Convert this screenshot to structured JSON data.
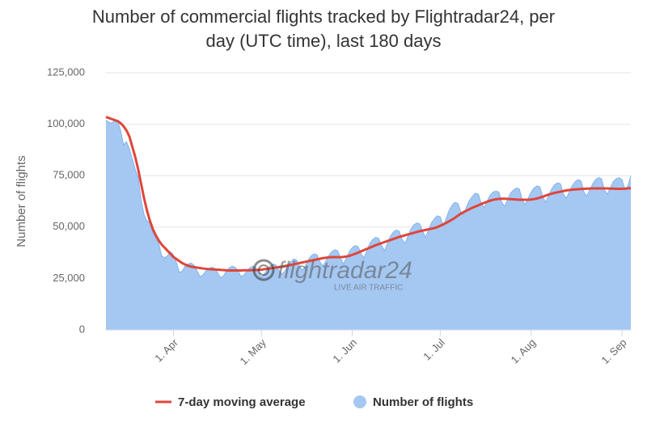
{
  "chart_data": {
    "type": "area",
    "title": [
      "Number of commercial flights tracked by Flightradar24, per",
      "day (UTC time), last 180 days"
    ],
    "y_axis_label": "Number of flights",
    "watermark": {
      "logo": "flightradar24",
      "tagline": "LIVE AIR TRAFFIC"
    },
    "ylim": [
      0,
      125000
    ],
    "yticks": [
      {
        "value": 0,
        "label": "0"
      },
      {
        "value": 25000,
        "label": "25,000"
      },
      {
        "value": 50000,
        "label": "50,000"
      },
      {
        "value": 75000,
        "label": "75,000"
      },
      {
        "value": 100000,
        "label": "100,000"
      },
      {
        "value": 125000,
        "label": "125,000"
      }
    ],
    "grid": true,
    "legend": "bottom",
    "categories": [
      null,
      null,
      null,
      null,
      null,
      null,
      null,
      null,
      null,
      null,
      null,
      null,
      null,
      null,
      null,
      null,
      null,
      null,
      null,
      null,
      null,
      null,
      null,
      "1. Apr",
      null,
      null,
      null,
      null,
      null,
      null,
      null,
      null,
      null,
      null,
      null,
      null,
      null,
      null,
      null,
      null,
      null,
      null,
      null,
      null,
      null,
      null,
      null,
      null,
      null,
      null,
      null,
      null,
      null,
      "1. May",
      null,
      null,
      null,
      null,
      null,
      null,
      null,
      null,
      null,
      null,
      null,
      null,
      null,
      null,
      null,
      null,
      null,
      null,
      null,
      null,
      null,
      null,
      null,
      null,
      null,
      null,
      null,
      null,
      null,
      null,
      "1. Jun",
      null,
      null,
      null,
      null,
      null,
      null,
      null,
      null,
      null,
      null,
      null,
      null,
      null,
      null,
      null,
      null,
      null,
      null,
      null,
      null,
      null,
      null,
      null,
      null,
      null,
      null,
      null,
      null,
      null,
      "1. Jul",
      null,
      null,
      null,
      null,
      null,
      null,
      null,
      null,
      null,
      null,
      null,
      null,
      null,
      null,
      null,
      null,
      null,
      null,
      null,
      null,
      null,
      null,
      null,
      null,
      null,
      null,
      null,
      null,
      null,
      null,
      "1. Aug",
      null,
      null,
      null,
      null,
      null,
      null,
      null,
      null,
      null,
      null,
      null,
      null,
      null,
      null,
      null,
      null,
      null,
      null,
      null,
      null,
      null,
      null,
      null,
      null,
      null,
      null,
      null,
      null,
      null,
      null,
      "1. Sep",
      null,
      null,
      null
    ],
    "series": [
      {
        "name": "7-day moving average",
        "type": "line",
        "color": "#e0453a",
        "values": [
          103500,
          103000,
          102500,
          102000,
          101500,
          100500,
          99000,
          97000,
          94000,
          89000,
          84000,
          78000,
          71000,
          64000,
          58000,
          53000,
          49000,
          46000,
          43500,
          41500,
          40000,
          38500,
          37000,
          35500,
          34500,
          33500,
          32500,
          31800,
          31200,
          30800,
          30500,
          30300,
          30100,
          29900,
          29700,
          29600,
          29500,
          29400,
          29300,
          29200,
          29100,
          29000,
          28900,
          28900,
          28900,
          28900,
          28900,
          29000,
          29000,
          29000,
          29100,
          29100,
          29200,
          29300,
          29500,
          29700,
          29900,
          30100,
          30300,
          30500,
          30700,
          31000,
          31300,
          31600,
          31900,
          32200,
          32500,
          32800,
          33100,
          33400,
          33700,
          34000,
          34300,
          34600,
          34900,
          35100,
          35300,
          35400,
          35400,
          35400,
          35400,
          35500,
          35700,
          36000,
          36500,
          37000,
          37600,
          38200,
          38800,
          39400,
          40000,
          40600,
          41200,
          41700,
          42200,
          42700,
          43200,
          43700,
          44200,
          44700,
          45200,
          45600,
          46000,
          46400,
          46800,
          47200,
          47600,
          48000,
          48300,
          48600,
          48900,
          49200,
          49500,
          50000,
          50600,
          51300,
          52000,
          52800,
          53600,
          54500,
          55500,
          56500,
          57300,
          58000,
          58700,
          59400,
          60000,
          60600,
          61200,
          61800,
          62300,
          62800,
          63200,
          63500,
          63700,
          63800,
          63800,
          63700,
          63600,
          63500,
          63400,
          63300,
          63300,
          63300,
          63300,
          63400,
          63600,
          63900,
          64300,
          64800,
          65300,
          65800,
          66200,
          66600,
          66900,
          67200,
          67500,
          67800,
          68000,
          68200,
          68300,
          68400,
          68500,
          68600,
          68700,
          68700,
          68800,
          68800,
          68800,
          68800,
          68800,
          68800,
          68700,
          68700,
          68600,
          68600,
          68600,
          68700,
          68800,
          69000
        ]
      },
      {
        "name": "Number of flights",
        "type": "area",
        "color": "#a5c8f2",
        "values": [
          102000,
          101000,
          100500,
          102000,
          101500,
          97000,
          90000,
          91500,
          88000,
          83000,
          78000,
          74000,
          63000,
          56000,
          53000,
          52000,
          47000,
          45000,
          42000,
          36000,
          35000,
          36000,
          38000,
          36500,
          33000,
          28000,
          28500,
          31000,
          32000,
          32500,
          31500,
          29000,
          26000,
          26500,
          28500,
          29500,
          30500,
          30000,
          28000,
          25500,
          26000,
          28500,
          30000,
          31000,
          30500,
          29000,
          26000,
          26500,
          28500,
          30000,
          31000,
          30500,
          28000,
          25500,
          27000,
          29500,
          31000,
          32000,
          31500,
          29000,
          27000,
          28500,
          31500,
          33000,
          34500,
          34000,
          31000,
          29000,
          31000,
          34000,
          36000,
          37000,
          36500,
          33000,
          31000,
          33500,
          36000,
          38000,
          39000,
          38500,
          35000,
          32000,
          35000,
          38000,
          40000,
          41000,
          40500,
          37000,
          35000,
          38500,
          42000,
          44000,
          45000,
          44500,
          41000,
          38500,
          42000,
          45500,
          47500,
          48500,
          48000,
          44000,
          42000,
          45500,
          49000,
          51000,
          52000,
          51500,
          48000,
          45000,
          48500,
          52000,
          54000,
          55500,
          55000,
          50500,
          54000,
          58000,
          60500,
          62000,
          61500,
          57500,
          56000,
          60000,
          63000,
          65000,
          66500,
          66000,
          61500,
          59500,
          62500,
          65500,
          67000,
          67500,
          67000,
          62000,
          60000,
          63500,
          66500,
          68000,
          69000,
          68500,
          63000,
          61000,
          64000,
          67000,
          69000,
          70000,
          69500,
          64500,
          62000,
          65500,
          68500,
          70500,
          71500,
          71000,
          66000,
          64000,
          67000,
          70000,
          72000,
          73000,
          72500,
          67000,
          65000,
          68000,
          71000,
          73000,
          74000,
          73500,
          68000,
          66000,
          69000,
          72000,
          73500,
          74000,
          73000,
          68000,
          70000,
          75000
        ]
      }
    ]
  }
}
